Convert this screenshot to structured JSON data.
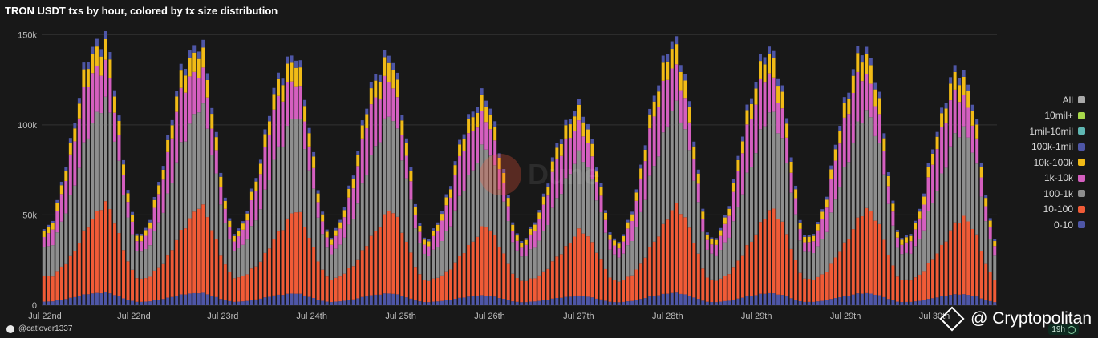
{
  "chart_data": {
    "type": "bar",
    "stacked": true,
    "title": "TRON USDT txs by hour, colored by tx size distribution",
    "xlabel": "",
    "ylabel": "",
    "ylim": [
      0,
      155000
    ],
    "yticks": [
      0,
      50000,
      100000,
      150000
    ],
    "ytick_labels": [
      "0",
      "50k",
      "100k",
      "150k"
    ],
    "x_tick_labels": [
      "Jul 22nd",
      "Jul 22nd",
      "Jul 23rd",
      "Jul 24th",
      "Jul 25th",
      "Jul 26th",
      "Jul 27th",
      "Jul 28th",
      "Jul 29th",
      "Jul 29th",
      "Jul 30th"
    ],
    "grid": true,
    "legend_position": "right",
    "legend": [
      "All",
      "10mil+",
      "1mil-10mil",
      "100k-1mil",
      "10k-100k",
      "1k-10k",
      "100-1k",
      "10-100",
      "0-10"
    ],
    "legend_colors": [
      "#a9a9a9",
      "#a7d84a",
      "#5fb7b3",
      "#4e56a6",
      "#f1bb17",
      "#d45fbf",
      "#8e8e8e",
      "#f05b37",
      "#4e56a6"
    ],
    "hours": 216,
    "peaks": [
      {
        "total": 154000,
        "share_0_10": 0.045,
        "share_10_100": 0.255,
        "share_100_1k": 0.365,
        "share_1k_10k": 0.235,
        "share_10k_100k": 0.072,
        "share_100k_1mil": 0.028
      },
      {
        "total": 150000,
        "share_0_10": 0.045,
        "share_10_100": 0.255,
        "share_100_1k": 0.365,
        "share_1k_10k": 0.235,
        "share_10k_100k": 0.072,
        "share_100k_1mil": 0.028
      },
      {
        "total": 143000,
        "share_0_10": 0.045,
        "share_10_100": 0.255,
        "share_100_1k": 0.365,
        "share_1k_10k": 0.235,
        "share_10k_100k": 0.072,
        "share_100k_1mil": 0.028
      },
      {
        "total": 143000,
        "share_0_10": 0.045,
        "share_10_100": 0.255,
        "share_100_1k": 0.365,
        "share_1k_10k": 0.235,
        "share_10k_100k": 0.072,
        "share_100k_1mil": 0.028
      },
      {
        "total": 119000,
        "share_0_10": 0.045,
        "share_10_100": 0.255,
        "share_100_1k": 0.365,
        "share_1k_10k": 0.235,
        "share_10k_100k": 0.072,
        "share_100k_1mil": 0.028
      },
      {
        "total": 113000,
        "share_0_10": 0.045,
        "share_10_100": 0.255,
        "share_100_1k": 0.365,
        "share_1k_10k": 0.235,
        "share_10k_100k": 0.072,
        "share_100k_1mil": 0.028
      },
      {
        "total": 150000,
        "share_0_10": 0.045,
        "share_10_100": 0.255,
        "share_100_1k": 0.365,
        "share_1k_10k": 0.235,
        "share_10k_100k": 0.072,
        "share_100k_1mil": 0.028
      },
      {
        "total": 146000,
        "share_0_10": 0.045,
        "share_10_100": 0.255,
        "share_100_1k": 0.365,
        "share_1k_10k": 0.235,
        "share_10k_100k": 0.072,
        "share_100k_1mil": 0.028
      },
      {
        "total": 147000,
        "share_0_10": 0.045,
        "share_10_100": 0.255,
        "share_100_1k": 0.365,
        "share_1k_10k": 0.235,
        "share_10k_100k": 0.072,
        "share_100k_1mil": 0.028
      },
      {
        "total": 135000,
        "share_0_10": 0.045,
        "share_10_100": 0.255,
        "share_100_1k": 0.365,
        "share_1k_10k": 0.235,
        "share_10k_100k": 0.072,
        "share_100k_1mil": 0.028
      }
    ],
    "troughs": [
      44000,
      41000,
      43000,
      41000,
      39000,
      38000,
      37000,
      38000,
      39000,
      38000,
      36000
    ]
  },
  "footer": {
    "user": "@catlover1337",
    "brand": "@ Cryptopolitan",
    "age": "19h"
  },
  "watermark": "Dune"
}
